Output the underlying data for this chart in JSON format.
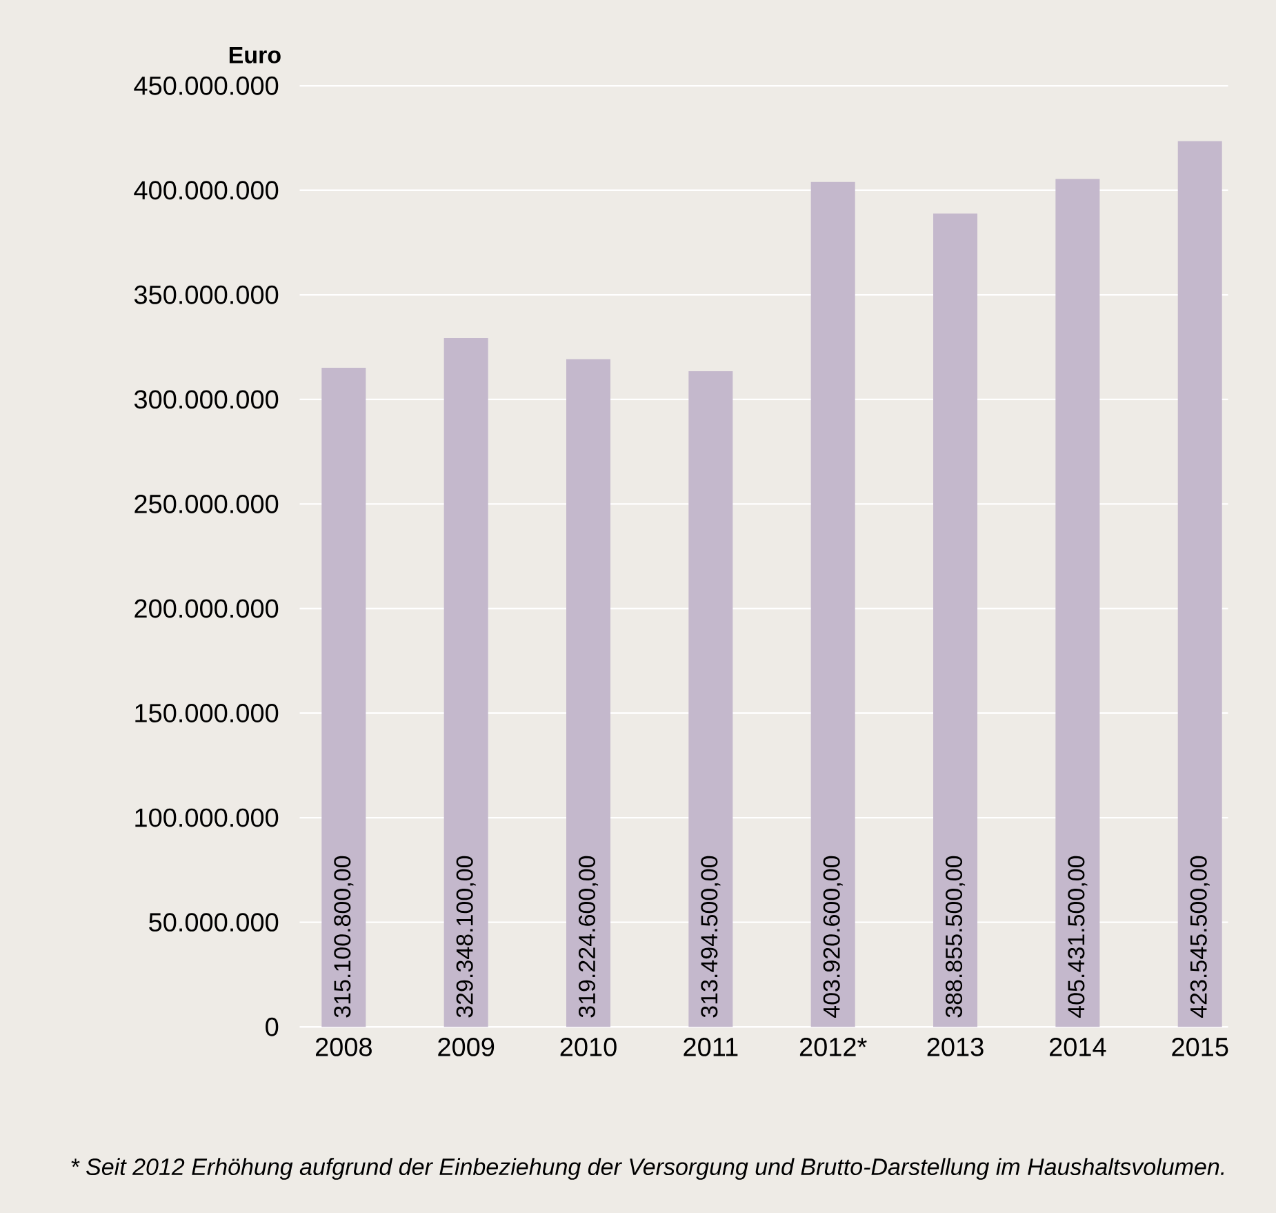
{
  "chart_data": {
    "type": "bar",
    "ylabel": "Euro",
    "categories": [
      "2008",
      "2009",
      "2010",
      "2011",
      "2012*",
      "2013",
      "2014",
      "2015"
    ],
    "values": [
      315100800,
      329348100,
      319224600,
      313494500,
      403920600,
      388855500,
      405431500,
      423545500
    ],
    "value_labels": [
      "315.100.800,00",
      "329.348.100,00",
      "319.224.600,00",
      "313.494.500,00",
      "403.920.600,00",
      "388.855.500,00",
      "405.431.500,00",
      "423.545.500,00"
    ],
    "color": "#c4b8cc",
    "ylim": [
      0,
      450000000
    ],
    "yticks": [
      {
        "value": 0,
        "label": "0"
      },
      {
        "value": 50000000,
        "label": "50.000.000"
      },
      {
        "value": 100000000,
        "label": "100.000.000"
      },
      {
        "value": 150000000,
        "label": "150.000.000"
      },
      {
        "value": 200000000,
        "label": "200.000.000"
      },
      {
        "value": 250000000,
        "label": "250.000.000"
      },
      {
        "value": 300000000,
        "label": "300.000.000"
      },
      {
        "value": 350000000,
        "label": "350.000.000"
      },
      {
        "value": 400000000,
        "label": "400.000.000"
      },
      {
        "value": 450000000,
        "label": "450.000.000"
      }
    ],
    "grid": "y",
    "annotations": [
      "* Seit 2012 Erhöhung aufgrund der Einbeziehung der Versorgung und Brutto-Darstellung im Haushaltsvolumen."
    ]
  }
}
